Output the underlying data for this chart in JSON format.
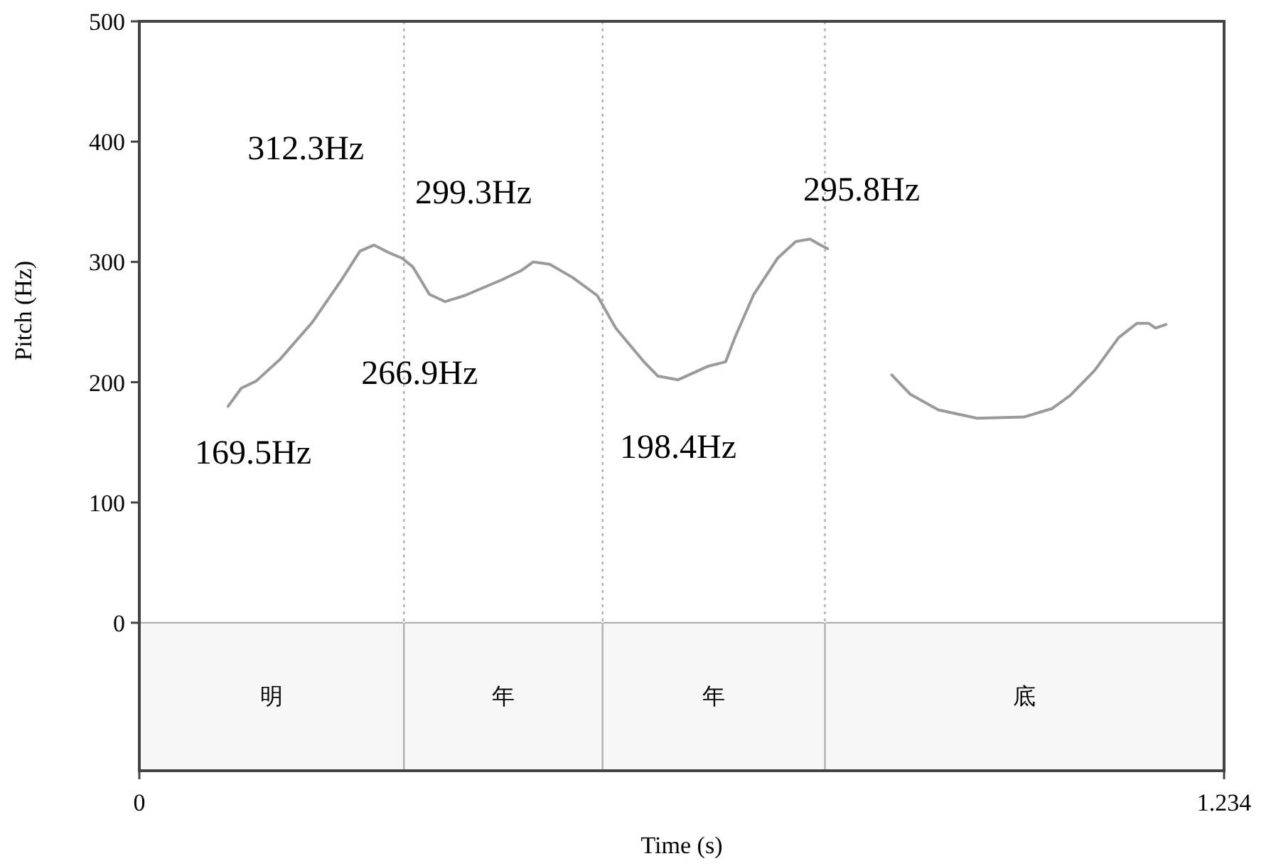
{
  "chart_data": {
    "type": "line",
    "xlabel": "Time (s)",
    "ylabel": "Pitch (Hz)",
    "xlim": [
      0,
      1.234
    ],
    "xticks": [
      0,
      1.234
    ],
    "ylim": [
      -123,
      500
    ],
    "yticks": [
      0,
      100,
      200,
      300,
      400,
      500
    ],
    "series": [
      {
        "color": "#9a9a9a",
        "x": [
          0.101,
          0.116,
          0.133,
          0.16,
          0.197,
          0.23,
          0.251,
          0.267,
          0.283,
          0.299,
          0.311,
          0.33,
          0.348,
          0.37,
          0.412,
          0.435,
          0.448,
          0.467,
          0.493,
          0.521,
          0.542,
          0.574,
          0.59,
          0.613,
          0.646,
          0.667,
          0.678,
          0.699,
          0.726,
          0.747,
          0.763,
          0.775,
          0.783
        ],
        "values": [
          180,
          195,
          201,
          219,
          250,
          285,
          309,
          314,
          308,
          303,
          296,
          273,
          267,
          272,
          285,
          293,
          300,
          298,
          287,
          272,
          245,
          217,
          205,
          202,
          213,
          217,
          238,
          273,
          303,
          317,
          319,
          314,
          311
        ]
      },
      {
        "color": "#9a9a9a",
        "x": [
          0.856,
          0.877,
          0.909,
          0.953,
          1.006,
          1.038,
          1.059,
          1.087,
          1.114,
          1.135,
          1.148,
          1.156,
          1.168
        ],
        "values": [
          206,
          190,
          177,
          170,
          171,
          178,
          189,
          210,
          237,
          249,
          249,
          245,
          248
        ]
      }
    ],
    "ref_lines": [
      {
        "axis": "y",
        "value": 0,
        "color": "#b0b0b0"
      },
      {
        "axis": "x",
        "value": 0.301,
        "color": "#b0b0b0"
      },
      {
        "axis": "x",
        "value": 0.527,
        "color": "#b0b0b0"
      },
      {
        "axis": "x",
        "value": 0.78,
        "color": "#b0b0b0"
      }
    ],
    "bands": [
      {
        "axis": "x",
        "from": 0,
        "to": 0.301,
        "label": "明",
        "color": "#f7f7f7"
      },
      {
        "axis": "x",
        "from": 0.301,
        "to": 0.527,
        "label": "年",
        "color": "#f7f7f7"
      },
      {
        "axis": "x",
        "from": 0.527,
        "to": 0.78,
        "label": "年",
        "color": "#f7f7f7"
      },
      {
        "axis": "x",
        "from": 0.78,
        "to": 1.234,
        "label": "底",
        "color": "#f7f7f7"
      }
    ],
    "annotations": [
      "169.5Hz",
      {
        "text": "312.3Hz",
        "x": 0.267,
        "y": 312.3
      },
      {
        "text": "266.9Hz",
        "x": 0.348,
        "y": 266.9
      },
      {
        "text": "299.3Hz",
        "x": 0.448,
        "y": 299.3
      },
      {
        "text": "198.4Hz",
        "x": 0.613,
        "y": 198.4
      },
      "295.8Hz"
    ]
  }
}
